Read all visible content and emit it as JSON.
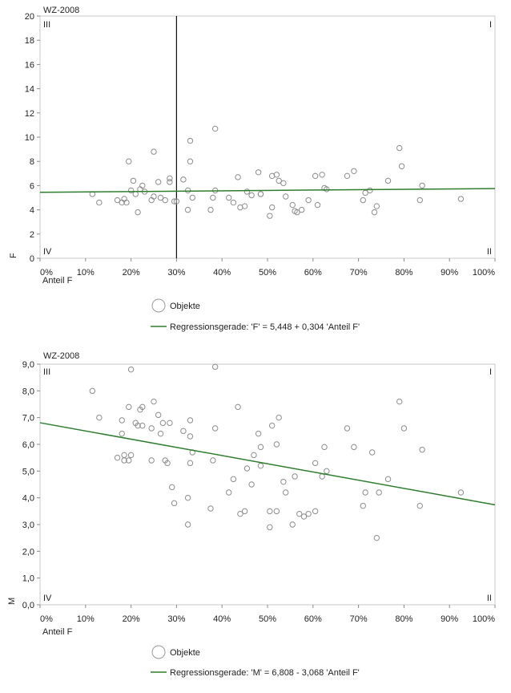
{
  "charts": [
    {
      "title": "WZ-2008",
      "quadrants": {
        "top_left": "III",
        "top_right": "I",
        "bottom_left": "IV",
        "bottom_right": "II"
      },
      "legend": {
        "objects_label": "Objekte",
        "regression_label": "Regressionsgerade: 'F' = 5,448 + 0,304 'Anteil F'"
      },
      "chart_data": {
        "type": "scatter",
        "title": "WZ-2008",
        "xlabel": "Anteil F",
        "ylabel": "F",
        "xlim": [
          0,
          100
        ],
        "ylim": [
          0,
          20
        ],
        "x_ticks": [
          0,
          10,
          20,
          30,
          40,
          50,
          60,
          70,
          80,
          90,
          100
        ],
        "x_tick_labels": [
          "0%",
          "10%",
          "20%",
          "30%",
          "40%",
          "50%",
          "60%",
          "70%",
          "80%",
          "90%",
          "100%"
        ],
        "y_ticks": [
          0,
          2,
          4,
          6,
          8,
          10,
          12,
          14,
          16,
          18,
          20
        ],
        "y_tick_labels": [
          "0",
          "2",
          "4",
          "6",
          "8",
          "10",
          "12",
          "14",
          "16",
          "18",
          "20"
        ],
        "vline_x": 30,
        "regression": {
          "intercept": 5.448,
          "slope": 0.304,
          "x_scale": "fraction"
        },
        "points": [
          [
            11.5,
            5.3
          ],
          [
            13,
            4.6
          ],
          [
            17,
            4.8
          ],
          [
            18,
            4.6
          ],
          [
            18.5,
            4.9
          ],
          [
            19,
            4.6
          ],
          [
            19.5,
            8.0
          ],
          [
            20,
            5.6
          ],
          [
            20.5,
            6.4
          ],
          [
            21,
            5.3
          ],
          [
            21.5,
            3.8
          ],
          [
            22,
            5.7
          ],
          [
            22.5,
            6.0
          ],
          [
            23,
            5.5
          ],
          [
            24.5,
            4.8
          ],
          [
            25,
            8.8
          ],
          [
            25,
            5.1
          ],
          [
            26,
            6.3
          ],
          [
            26.5,
            5.0
          ],
          [
            27.5,
            4.8
          ],
          [
            28.5,
            6.3
          ],
          [
            28.5,
            6.6
          ],
          [
            29.5,
            4.7
          ],
          [
            30,
            4.7
          ],
          [
            31.5,
            6.5
          ],
          [
            32.5,
            5.6
          ],
          [
            32.5,
            4.0
          ],
          [
            33,
            9.7
          ],
          [
            33,
            8.0
          ],
          [
            33.5,
            5.0
          ],
          [
            37.5,
            4.0
          ],
          [
            38,
            5.0
          ],
          [
            38.5,
            10.7
          ],
          [
            38.5,
            5.6
          ],
          [
            41.5,
            5.0
          ],
          [
            42.5,
            4.6
          ],
          [
            43.5,
            6.7
          ],
          [
            44,
            4.2
          ],
          [
            45,
            4.3
          ],
          [
            45.5,
            5.5
          ],
          [
            46.5,
            5.2
          ],
          [
            48,
            7.1
          ],
          [
            48.5,
            5.3
          ],
          [
            48.5,
            5.3
          ],
          [
            50.5,
            3.5
          ],
          [
            51,
            4.2
          ],
          [
            51,
            6.8
          ],
          [
            52,
            6.9
          ],
          [
            52.5,
            6.4
          ],
          [
            53.5,
            6.2
          ],
          [
            54,
            5.1
          ],
          [
            55.5,
            4.4
          ],
          [
            56,
            3.9
          ],
          [
            56.5,
            3.8
          ],
          [
            57.5,
            4.0
          ],
          [
            59,
            4.8
          ],
          [
            60.5,
            6.8
          ],
          [
            61,
            4.4
          ],
          [
            62,
            6.9
          ],
          [
            62.5,
            5.8
          ],
          [
            63,
            5.7
          ],
          [
            67.5,
            6.8
          ],
          [
            69,
            7.2
          ],
          [
            71,
            4.8
          ],
          [
            71.5,
            5.4
          ],
          [
            72.5,
            5.6
          ],
          [
            73.5,
            3.8
          ],
          [
            74,
            4.3
          ],
          [
            76.5,
            6.4
          ],
          [
            79,
            9.1
          ],
          [
            79.5,
            7.6
          ],
          [
            83.5,
            4.8
          ],
          [
            84,
            6.0
          ],
          [
            92.5,
            4.9
          ]
        ]
      }
    },
    {
      "title": "WZ-2008",
      "quadrants": {
        "top_left": "III",
        "top_right": "I",
        "bottom_left": "IV",
        "bottom_right": "II"
      },
      "legend": {
        "objects_label": "Objekte",
        "regression_label": "Regressionsgerade: 'M' = 6,808 - 3,068 'Anteil F'"
      },
      "chart_data": {
        "type": "scatter",
        "title": "WZ-2008",
        "xlabel": "Anteil F",
        "ylabel": "M",
        "xlim": [
          0,
          100
        ],
        "ylim": [
          0,
          9
        ],
        "x_ticks": [
          0,
          10,
          20,
          30,
          40,
          50,
          60,
          70,
          80,
          90,
          100
        ],
        "x_tick_labels": [
          "0%",
          "10%",
          "20%",
          "30%",
          "40%",
          "50%",
          "60%",
          "70%",
          "80%",
          "90%",
          "100%"
        ],
        "y_ticks": [
          0,
          1,
          2,
          3,
          4,
          5,
          6,
          7,
          8,
          9
        ],
        "y_tick_labels": [
          "0,0",
          "1,0",
          "2,0",
          "3,0",
          "4,0",
          "5,0",
          "6,0",
          "7,0",
          "8,0",
          "9,0"
        ],
        "vline_x": null,
        "regression": {
          "intercept": 6.808,
          "slope": -3.068,
          "x_scale": "fraction"
        },
        "points": [
          [
            11.5,
            8.0
          ],
          [
            13,
            7.0
          ],
          [
            17,
            5.5
          ],
          [
            18,
            6.4
          ],
          [
            18,
            6.9
          ],
          [
            18.5,
            5.4
          ],
          [
            18.5,
            5.6
          ],
          [
            19.5,
            5.4
          ],
          [
            19.5,
            7.4
          ],
          [
            20,
            5.6
          ],
          [
            20,
            8.8
          ],
          [
            21,
            6.8
          ],
          [
            21.5,
            6.7
          ],
          [
            22,
            7.3
          ],
          [
            22.5,
            6.7
          ],
          [
            22.5,
            7.4
          ],
          [
            24.5,
            6.6
          ],
          [
            24.5,
            5.4
          ],
          [
            25,
            7.6
          ],
          [
            26,
            7.1
          ],
          [
            26.5,
            6.4
          ],
          [
            27,
            6.8
          ],
          [
            27.5,
            5.4
          ],
          [
            28,
            5.3
          ],
          [
            28.5,
            6.8
          ],
          [
            29,
            4.4
          ],
          [
            29.5,
            3.8
          ],
          [
            31.5,
            6.5
          ],
          [
            32.5,
            4.0
          ],
          [
            32.5,
            3.0
          ],
          [
            33,
            5.3
          ],
          [
            33,
            6.3
          ],
          [
            33,
            6.9
          ],
          [
            33.5,
            5.7
          ],
          [
            37.5,
            3.6
          ],
          [
            38,
            5.4
          ],
          [
            38.5,
            8.9
          ],
          [
            38.5,
            6.6
          ],
          [
            41.5,
            4.2
          ],
          [
            42.5,
            4.7
          ],
          [
            43.5,
            7.4
          ],
          [
            44,
            3.4
          ],
          [
            45,
            3.5
          ],
          [
            45.5,
            5.1
          ],
          [
            46.5,
            4.5
          ],
          [
            47,
            5.6
          ],
          [
            48,
            6.4
          ],
          [
            48.5,
            5.9
          ],
          [
            48.5,
            5.2
          ],
          [
            50.5,
            2.9
          ],
          [
            50.5,
            3.5
          ],
          [
            51,
            6.7
          ],
          [
            52,
            3.5
          ],
          [
            52,
            6.0
          ],
          [
            52.5,
            7.0
          ],
          [
            53.5,
            4.6
          ],
          [
            54,
            4.2
          ],
          [
            55.5,
            3.0
          ],
          [
            56,
            4.8
          ],
          [
            57,
            3.4
          ],
          [
            58,
            3.3
          ],
          [
            59,
            3.4
          ],
          [
            60.5,
            3.5
          ],
          [
            60.5,
            5.3
          ],
          [
            62,
            4.8
          ],
          [
            62.5,
            5.9
          ],
          [
            63,
            5.0
          ],
          [
            67.5,
            6.6
          ],
          [
            69,
            5.9
          ],
          [
            71,
            3.7
          ],
          [
            71.5,
            4.2
          ],
          [
            73,
            5.7
          ],
          [
            74,
            2.5
          ],
          [
            74.5,
            4.2
          ],
          [
            76.5,
            4.7
          ],
          [
            79,
            7.6
          ],
          [
            80,
            6.6
          ],
          [
            83.5,
            3.7
          ],
          [
            84,
            5.8
          ],
          [
            92.5,
            4.2
          ]
        ]
      }
    }
  ]
}
